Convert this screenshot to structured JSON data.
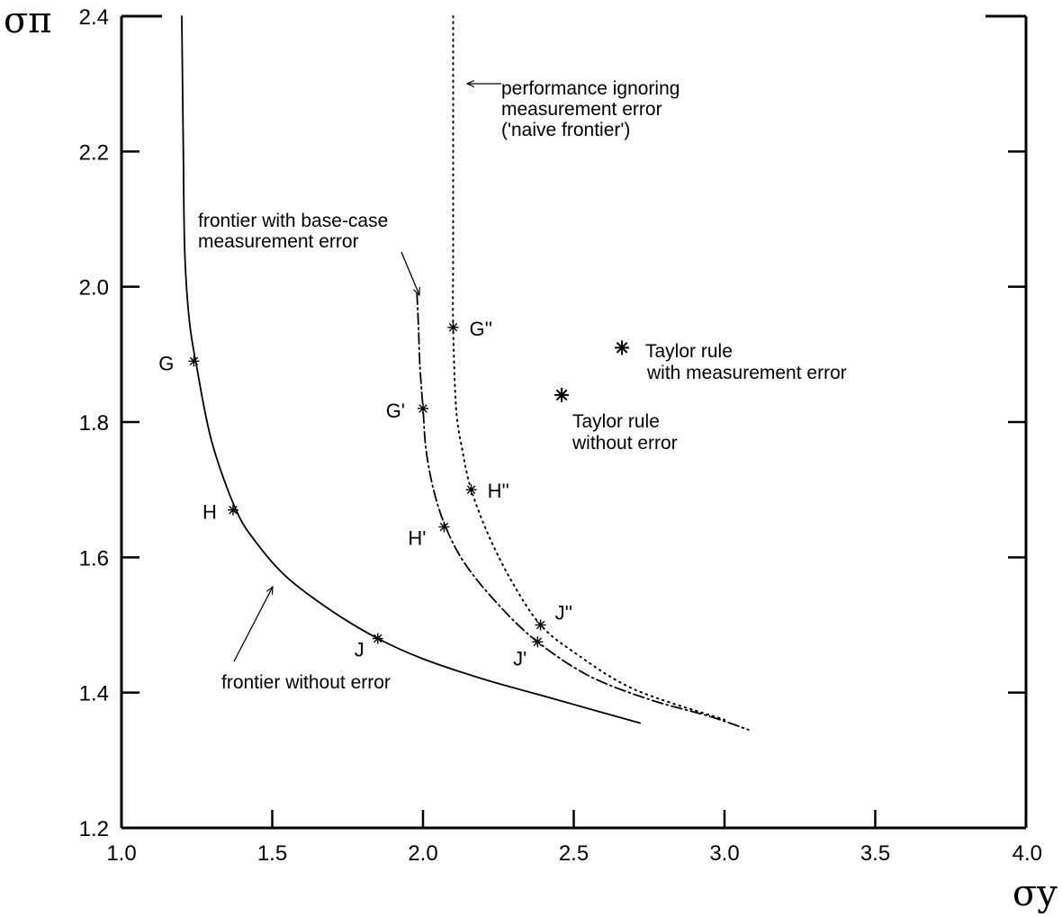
{
  "chart_data": {
    "type": "line",
    "xlabel": "σy",
    "ylabel": "σπ",
    "xlim": [
      1.0,
      4.0
    ],
    "ylim": [
      1.2,
      2.4
    ],
    "x_ticks": [
      "1.0",
      "1.5",
      "2.0",
      "2.5",
      "3.0",
      "3.5",
      "4.0"
    ],
    "y_ticks": [
      "1.2",
      "1.4",
      "1.6",
      "1.8",
      "2.0",
      "2.2",
      "2.4"
    ],
    "grid": false,
    "series": [
      {
        "name": "frontier without error",
        "style": "solid",
        "points": [
          [
            1.2,
            2.4
          ],
          [
            1.205,
            2.2
          ],
          [
            1.21,
            2.05
          ],
          [
            1.225,
            1.95
          ],
          [
            1.25,
            1.88
          ],
          [
            1.3,
            1.77
          ],
          [
            1.38,
            1.67
          ],
          [
            1.45,
            1.62
          ],
          [
            1.55,
            1.57
          ],
          [
            1.7,
            1.52
          ],
          [
            1.85,
            1.48
          ],
          [
            2.0,
            1.45
          ],
          [
            2.2,
            1.42
          ],
          [
            2.4,
            1.395
          ],
          [
            2.72,
            1.355
          ]
        ]
      },
      {
        "name": "frontier with base-case measurement error",
        "style": "dashdot",
        "points": [
          [
            1.98,
            1.99
          ],
          [
            1.985,
            1.94
          ],
          [
            1.99,
            1.88
          ],
          [
            2.0,
            1.82
          ],
          [
            2.01,
            1.76
          ],
          [
            2.035,
            1.7
          ],
          [
            2.075,
            1.645
          ],
          [
            2.14,
            1.59
          ],
          [
            2.25,
            1.53
          ],
          [
            2.38,
            1.475
          ],
          [
            2.55,
            1.425
          ],
          [
            2.75,
            1.39
          ],
          [
            2.95,
            1.365
          ],
          [
            3.08,
            1.345
          ]
        ]
      },
      {
        "name": "performance ignoring measurement error ('naive frontier')",
        "style": "dotted",
        "points": [
          [
            2.1,
            2.4
          ],
          [
            2.1,
            2.2
          ],
          [
            2.1,
            2.05
          ],
          [
            2.1,
            1.94
          ],
          [
            2.11,
            1.82
          ],
          [
            2.13,
            1.76
          ],
          [
            2.16,
            1.7
          ],
          [
            2.22,
            1.63
          ],
          [
            2.3,
            1.56
          ],
          [
            2.39,
            1.5
          ],
          [
            2.5,
            1.46
          ],
          [
            2.7,
            1.405
          ],
          [
            3.0,
            1.36
          ]
        ]
      }
    ],
    "points": [
      {
        "label": "G",
        "x": 1.24,
        "y": 1.89,
        "marker": "small"
      },
      {
        "label": "H",
        "x": 1.37,
        "y": 1.67,
        "marker": "small"
      },
      {
        "label": "J",
        "x": 1.85,
        "y": 1.48,
        "marker": "small"
      },
      {
        "label": "G'",
        "x": 2.0,
        "y": 1.82,
        "marker": "small"
      },
      {
        "label": "H'",
        "x": 2.07,
        "y": 1.645,
        "marker": "small"
      },
      {
        "label": "J'",
        "x": 2.38,
        "y": 1.475,
        "marker": "small"
      },
      {
        "label": "G''",
        "x": 2.1,
        "y": 1.94,
        "marker": "small"
      },
      {
        "label": "H''",
        "x": 2.16,
        "y": 1.7,
        "marker": "small"
      },
      {
        "label": "J''",
        "x": 2.39,
        "y": 1.5,
        "marker": "small"
      },
      {
        "label": "",
        "x": 2.66,
        "y": 1.91,
        "marker": "large"
      },
      {
        "label": "",
        "x": 2.46,
        "y": 1.84,
        "marker": "large"
      }
    ],
    "annotations": [
      {
        "id": "naive",
        "lines": [
          "performance ignoring",
          "measurement error",
          "('naive frontier')"
        ],
        "arrow": "left-pointing",
        "target": [
          2.12,
          2.3
        ]
      },
      {
        "id": "base-case",
        "lines": [
          "frontier with base-case",
          "measurement error"
        ],
        "arrow": "down-pointing",
        "target": [
          1.98,
          1.99
        ]
      },
      {
        "id": "without-error",
        "lines": [
          "frontier without error"
        ],
        "arrow": "up-pointing",
        "target": [
          1.5,
          1.56
        ]
      },
      {
        "id": "taylor-error",
        "lines": [
          "Taylor rule",
          "with measurement error"
        ],
        "target": [
          2.66,
          1.91
        ]
      },
      {
        "id": "taylor-noerror",
        "lines": [
          "Taylor rule",
          "without error"
        ],
        "target": [
          2.46,
          1.84
        ]
      }
    ]
  }
}
